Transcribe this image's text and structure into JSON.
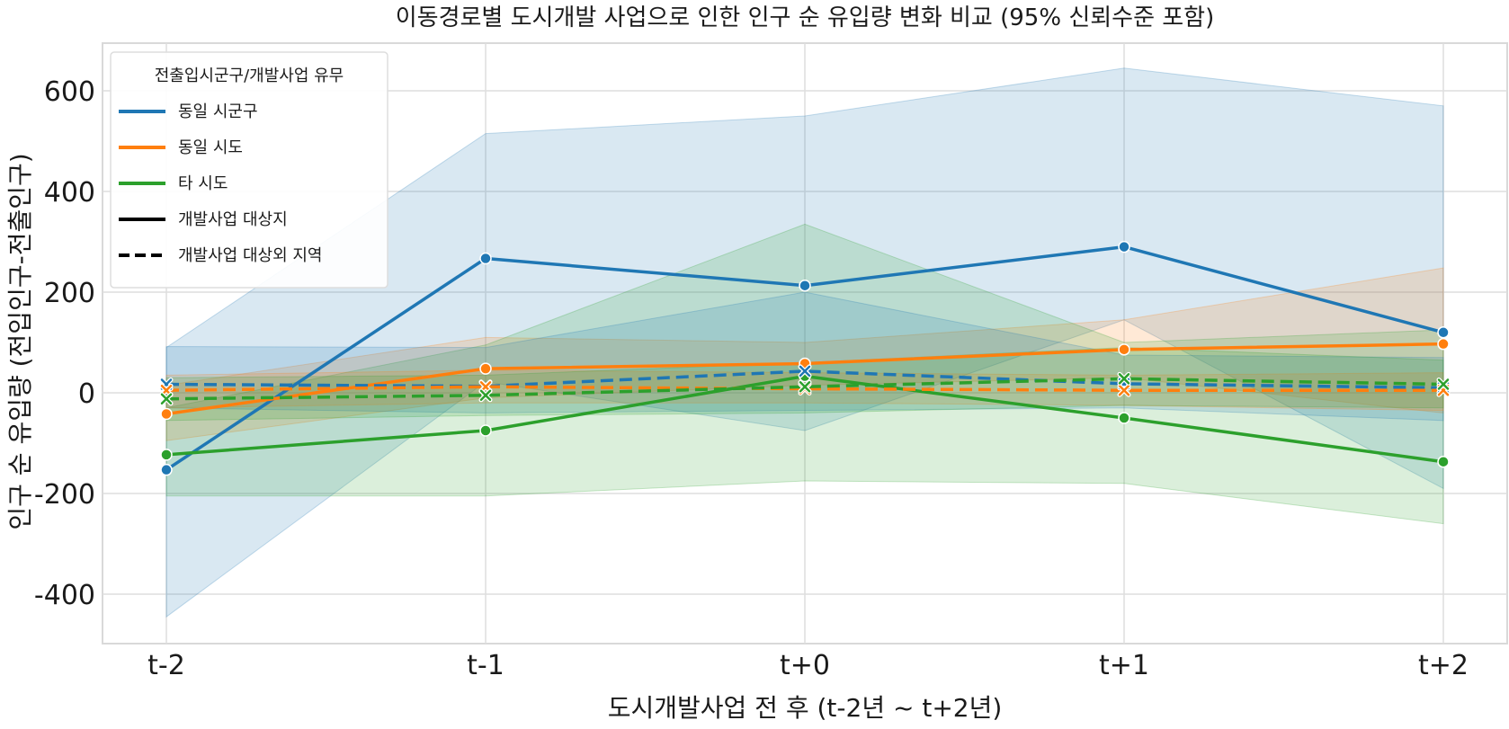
{
  "chart_data": {
    "type": "line",
    "title": "이동경로별 도시개발 사업으로 인한 인구 순 유입량 변화 비교 (95% 신뢰수준 포함)",
    "xlabel": "도시개발사업 전 후 (t-2년 ~ t+2년)",
    "ylabel": "인구 순 유입량 (전입인구-전출인구)",
    "categories": [
      "t-2",
      "t-1",
      "t+0",
      "t+1",
      "t+2"
    ],
    "ylim": [
      -500,
      700
    ],
    "yticks": [
      -400,
      -200,
      0,
      200,
      400,
      600
    ],
    "grid": true,
    "legend": {
      "title": "전출입시군구/개발사업 유무",
      "placement": "top-left",
      "entries": [
        {
          "label": "동일 시군구",
          "color": "#1f77b4",
          "style": "solid"
        },
        {
          "label": "동일 시도",
          "color": "#ff7f0e",
          "style": "solid"
        },
        {
          "label": "타 시도",
          "color": "#2ca02c",
          "style": "solid"
        },
        {
          "label": "개발사업 대상지",
          "color": "#000000",
          "style": "solid"
        },
        {
          "label": "개발사업 대상외 지역",
          "color": "#000000",
          "style": "dashed"
        }
      ]
    },
    "series": [
      {
        "route": "동일 시군구",
        "group": "개발사업 대상지",
        "color": "#1f77b4",
        "style": "solid",
        "marker": "circle",
        "values": [
          -153,
          267,
          213,
          290,
          120
        ],
        "ci_low": [
          -445,
          22,
          -75,
          145,
          -190
        ],
        "ci_high": [
          90,
          515,
          550,
          645,
          570
        ]
      },
      {
        "route": "동일 시도",
        "group": "개발사업 대상지",
        "color": "#ff7f0e",
        "style": "solid",
        "marker": "circle",
        "values": [
          -42,
          48,
          58,
          86,
          97
        ],
        "ci_low": [
          -95,
          -10,
          15,
          30,
          -40
        ],
        "ci_high": [
          15,
          110,
          100,
          145,
          248
        ]
      },
      {
        "route": "타 시도",
        "group": "개발사업 대상지",
        "color": "#2ca02c",
        "style": "solid",
        "marker": "circle",
        "values": [
          -123,
          -75,
          33,
          -50,
          -137
        ],
        "ci_low": [
          -205,
          -205,
          -175,
          -180,
          -260
        ],
        "ci_high": [
          -30,
          95,
          335,
          100,
          125
        ]
      },
      {
        "route": "동일 시군구",
        "group": "개발사업 대상외 지역",
        "color": "#1f77b4",
        "style": "dashed",
        "marker": "x",
        "values": [
          17,
          13,
          43,
          18,
          10
        ],
        "ci_low": [
          -30,
          -40,
          -35,
          -30,
          -55
        ],
        "ci_high": [
          92,
          90,
          200,
          75,
          70
        ]
      },
      {
        "route": "동일 시도",
        "group": "개발사업 대상외 지역",
        "color": "#ff7f0e",
        "style": "dashed",
        "marker": "x",
        "values": [
          5,
          12,
          8,
          5,
          5
        ],
        "ci_low": [
          -30,
          -20,
          -20,
          -25,
          -35
        ],
        "ci_high": [
          35,
          45,
          40,
          35,
          40
        ]
      },
      {
        "route": "타 시도",
        "group": "개발사업 대상외 지역",
        "color": "#2ca02c",
        "style": "dashed",
        "marker": "x",
        "values": [
          -12,
          -5,
          12,
          28,
          17
        ],
        "ci_low": [
          -55,
          -45,
          -40,
          -25,
          -30
        ],
        "ci_high": [
          30,
          35,
          60,
          90,
          65
        ]
      }
    ]
  }
}
